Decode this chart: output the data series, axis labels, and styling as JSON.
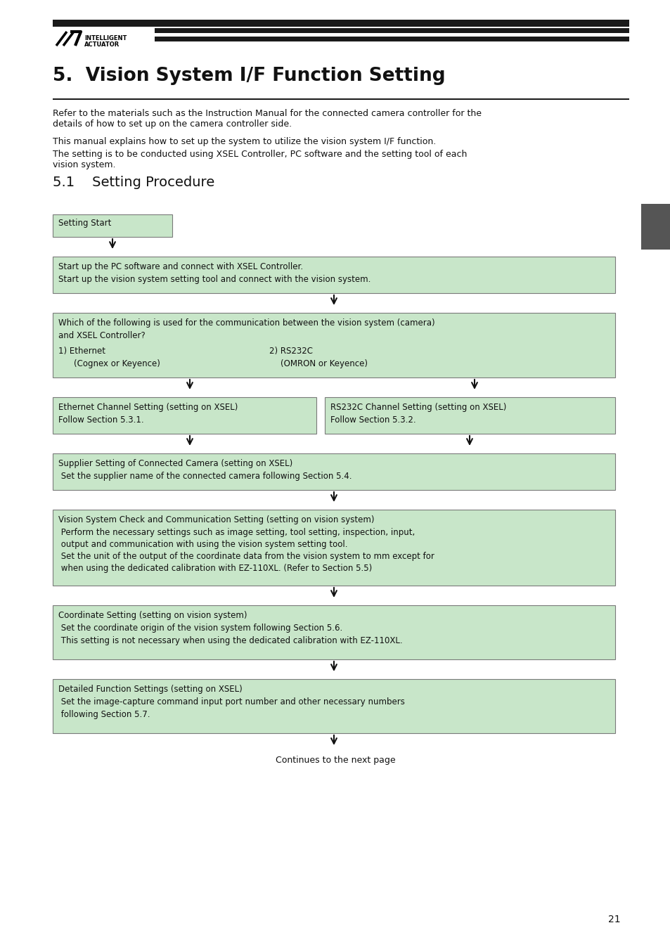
{
  "page_bg": "#ffffff",
  "header_bar_color": "#1a1a1a",
  "title": "5.  Vision System I/F Function Setting",
  "section_title": "5.1    Setting Procedure",
  "body_text_1": "Refer to the materials such as the Instruction Manual for the connected camera controller for the\ndetails of how to set up on the camera controller side.",
  "body_text_2": "This manual explains how to set up the system to utilize the vision system I/F function.",
  "body_text_3": "The setting is to be conducted using XSEL Controller, PC software and the setting tool of each\nvision system.",
  "box_fill": "#c8e6c9",
  "box_edge": "#7a7a7a",
  "text_color": "#111111",
  "arrow_color": "#111111",
  "page_number": "21",
  "continues_text": "Continues to the next page",
  "logo_text_1": "INTELLIGENT",
  "logo_text_2": "ACTUATOR"
}
